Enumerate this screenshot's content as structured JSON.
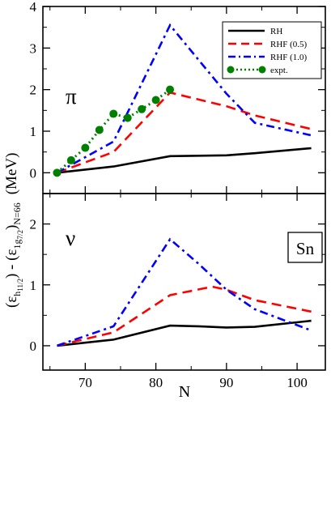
{
  "chart_data": {
    "type": "line",
    "xlabel": "N",
    "xlim": [
      64,
      104
    ],
    "xticks": [
      70,
      80,
      90,
      100
    ],
    "ylabel": {
      "open": "(ε",
      "h_sub": "h",
      "h_subsub": "11/2",
      "mid": ") - (ε",
      "g_sub": "1g",
      "g_subsub": "7/2",
      "close": ")",
      "n_sub": "N=66",
      "units": "(MeV)"
    },
    "panels": [
      {
        "symbol": "π",
        "ylim": [
          -0.5,
          4
        ],
        "yticks": [
          0,
          1,
          2,
          3,
          4
        ],
        "series": [
          {
            "name": "RH",
            "color": "#000000",
            "dash": "solid",
            "x": [
              66,
              74,
              82,
              90,
              94,
              102
            ],
            "y": [
              0,
              0.15,
              0.4,
              0.42,
              0.47,
              0.59
            ]
          },
          {
            "name": "RHF (0.5)",
            "color": "#ff0000",
            "dash": "dash",
            "x": [
              66,
              74,
              82,
              90,
              94,
              102
            ],
            "y": [
              0,
              0.5,
              1.93,
              1.6,
              1.38,
              1.05
            ]
          },
          {
            "name": "RHF (1.0)",
            "color": "#0000ff",
            "dash": "dashdot",
            "x": [
              66,
              74,
              82,
              90,
              94,
              102
            ],
            "y": [
              0,
              0.75,
              3.55,
              1.9,
              1.2,
              0.9
            ]
          },
          {
            "name": "expt.",
            "color": "#008000",
            "dash": "dot",
            "markers": true,
            "x": [
              66,
              68,
              70,
              72,
              74,
              76,
              78,
              80,
              82
            ],
            "y": [
              0,
              0.3,
              0.6,
              1.03,
              1.42,
              1.32,
              1.53,
              1.75,
              2.0
            ]
          }
        ]
      },
      {
        "symbol": "ν",
        "label_box": "Sn",
        "ylim": [
          -0.4,
          2.5
        ],
        "yticks": [
          0,
          1,
          2
        ],
        "series": [
          {
            "name": "RH",
            "color": "#000000",
            "dash": "solid",
            "x": [
              66,
              74,
              82,
              86,
              90,
              94,
              102
            ],
            "y": [
              0,
              0.1,
              0.33,
              0.32,
              0.3,
              0.31,
              0.41
            ]
          },
          {
            "name": "RHF (0.5)",
            "color": "#ff0000",
            "dash": "dash",
            "x": [
              66,
              74,
              82,
              88,
              90,
              94,
              102
            ],
            "y": [
              0,
              0.22,
              0.83,
              0.97,
              0.92,
              0.75,
              0.56
            ]
          },
          {
            "name": "RHF (1.0)",
            "color": "#0000ff",
            "dash": "dashdot",
            "x": [
              66,
              74,
              82,
              86,
              90,
              94,
              102
            ],
            "y": [
              0,
              0.32,
              1.75,
              1.35,
              0.92,
              0.6,
              0.25
            ]
          }
        ]
      }
    ],
    "legend": {
      "placement": "top-right",
      "entries": [
        "RH",
        "RHF (0.5)",
        "RHF (1.0)",
        "expt."
      ]
    }
  }
}
